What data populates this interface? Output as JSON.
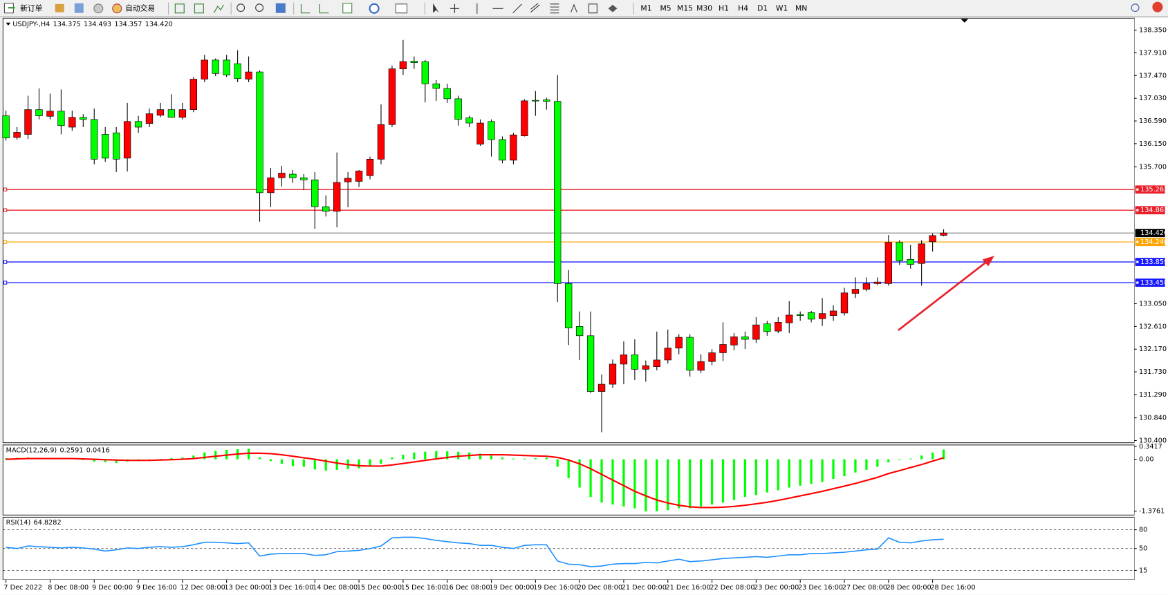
{
  "toolbar": {
    "new_order": "新订单",
    "auto_trading": "自动交易",
    "timeframes": [
      "M1",
      "M5",
      "M15",
      "M30",
      "H1",
      "H4",
      "D1",
      "W1",
      "MN"
    ]
  },
  "chart_data": [
    {
      "type": "candlestick",
      "title": "USDJPY-,H4",
      "ohlc_labels": [
        "134.375",
        "134.493",
        "134.357",
        "134.420"
      ],
      "categories": [
        "7 Dec 2022",
        null,
        null,
        null,
        "8 Dec 08:00",
        null,
        null,
        null,
        "9 Dec 00:00",
        null,
        null,
        null,
        "9 Dec 16:00",
        null,
        null,
        null,
        "12 Dec 08:00",
        null,
        null,
        null,
        "13 Dec 00:00",
        null,
        null,
        null,
        "13 Dec 16:00",
        null,
        null,
        null,
        "14 Dec 08:00",
        null,
        null,
        null,
        "15 Dec 00:00",
        null,
        null,
        null,
        "15 Dec 16:00",
        null,
        null,
        null,
        "16 Dec 08:00",
        null,
        null,
        null,
        "19 Dec 00:00",
        null,
        null,
        null,
        "19 Dec 16:00",
        null,
        null,
        null,
        "20 Dec 08:00",
        null,
        null,
        null,
        "21 Dec 00:00",
        null,
        null,
        null,
        "21 Dec 16:00",
        null,
        null,
        null,
        "22 Dec 08:00",
        null,
        null,
        null,
        "23 Dec 00:00",
        null,
        null,
        null,
        "23 Dec 16:00",
        null,
        null,
        null,
        "27 Dec 08:00",
        null,
        null,
        null,
        "28 Dec 00:00",
        null,
        null,
        null,
        "28 Dec 16:00",
        null
      ],
      "open": [
        136.69,
        136.27,
        136.33,
        136.81,
        136.68,
        136.78,
        136.47,
        136.66,
        136.62,
        136.33,
        136.36,
        135.87,
        136.58,
        136.54,
        136.7,
        136.81,
        136.66,
        136.81,
        137.4,
        137.77,
        137.77,
        137.7,
        137.4,
        137.54,
        135.2,
        135.49,
        135.56,
        135.49,
        135.45,
        134.93,
        134.84,
        135.41,
        135.42,
        135.53,
        135.85,
        136.52,
        137.6,
        137.75,
        137.74,
        137.31,
        137.22,
        137.02,
        136.65,
        136.14,
        136.58,
        136.23,
        135.83,
        136.3,
        136.99,
        137.0,
        136.97,
        133.44,
        132.61,
        132.43,
        131.35,
        131.49,
        131.88,
        132.06,
        131.78,
        131.83,
        131.96,
        132.19,
        132.4,
        131.76,
        131.93,
        132.1,
        132.25,
        132.41,
        132.36,
        132.66,
        132.52,
        132.68,
        132.84,
        132.88,
        132.76,
        132.82,
        132.87,
        133.25,
        133.33,
        133.44,
        133.44,
        134.24,
        133.91,
        133.83,
        134.25,
        134.375
      ],
      "high": [
        136.79,
        136.47,
        137.08,
        137.22,
        137.12,
        137.2,
        136.79,
        136.72,
        136.83,
        136.47,
        136.47,
        136.94,
        136.69,
        136.83,
        136.94,
        137.11,
        136.94,
        137.44,
        137.87,
        137.8,
        137.87,
        137.96,
        137.84,
        137.57,
        135.68,
        135.72,
        135.64,
        135.56,
        135.6,
        135.15,
        135.98,
        135.6,
        135.64,
        135.9,
        136.91,
        137.66,
        138.16,
        137.84,
        137.77,
        137.38,
        137.31,
        137.08,
        136.69,
        136.62,
        136.62,
        136.29,
        136.36,
        137.01,
        137.17,
        137.04,
        137.48,
        133.7,
        132.9,
        132.9,
        131.68,
        131.97,
        132.32,
        132.36,
        131.95,
        132.51,
        132.55,
        132.46,
        132.46,
        132.07,
        132.17,
        132.69,
        132.48,
        132.51,
        132.79,
        132.72,
        132.79,
        133.1,
        132.9,
        132.91,
        133.16,
        133.02,
        133.36,
        133.56,
        133.56,
        133.56,
        134.38,
        134.28,
        134.19,
        134.28,
        134.41,
        134.493
      ],
      "low": [
        136.21,
        136.23,
        136.24,
        136.62,
        136.62,
        136.33,
        136.4,
        136.47,
        135.75,
        135.8,
        135.6,
        135.61,
        136.36,
        136.47,
        136.66,
        136.65,
        136.62,
        136.76,
        137.34,
        137.46,
        137.44,
        137.34,
        137.34,
        134.64,
        134.92,
        135.32,
        135.39,
        135.25,
        134.5,
        134.74,
        134.53,
        134.92,
        135.31,
        135.46,
        135.75,
        136.47,
        137.48,
        137.6,
        136.95,
        136.98,
        136.94,
        136.5,
        136.47,
        136.11,
        135.9,
        135.77,
        135.75,
        136.29,
        136.69,
        136.81,
        133.08,
        132.25,
        131.96,
        131.32,
        130.56,
        131.42,
        131.49,
        131.57,
        131.54,
        131.76,
        131.89,
        132.07,
        131.64,
        131.71,
        131.86,
        131.94,
        132.15,
        132.17,
        132.29,
        132.43,
        132.48,
        132.48,
        132.72,
        132.69,
        132.62,
        132.72,
        132.82,
        133.16,
        133.29,
        133.41,
        133.4,
        133.8,
        133.73,
        133.4,
        134.06,
        134.357
      ],
      "close": [
        136.26,
        136.37,
        136.81,
        136.69,
        136.78,
        136.5,
        136.66,
        136.62,
        135.85,
        135.87,
        135.85,
        136.58,
        136.47,
        136.73,
        136.81,
        136.66,
        136.81,
        137.4,
        137.77,
        137.51,
        137.48,
        137.41,
        137.54,
        135.2,
        135.49,
        135.58,
        135.49,
        135.45,
        134.93,
        134.84,
        135.4,
        135.48,
        135.62,
        135.85,
        136.52,
        137.6,
        137.74,
        137.72,
        137.31,
        137.22,
        137.02,
        136.62,
        136.55,
        136.55,
        136.23,
        135.83,
        136.32,
        136.98,
        136.98,
        136.97,
        133.44,
        132.58,
        132.43,
        131.35,
        131.49,
        131.88,
        132.06,
        131.78,
        131.85,
        131.96,
        132.19,
        132.4,
        131.76,
        131.93,
        132.1,
        132.26,
        132.41,
        132.36,
        132.64,
        132.51,
        132.69,
        132.83,
        132.82,
        132.75,
        132.86,
        132.91,
        133.26,
        133.33,
        133.44,
        133.47,
        134.24,
        133.88,
        133.81,
        134.21,
        134.37,
        134.42
      ],
      "up_color": "#ff0000",
      "down_color": "#00ff00",
      "ylim": [
        130.357,
        138.581
      ],
      "yticks": [
        {
          "value": 138.35,
          "label": "138.350"
        },
        {
          "value": 137.91,
          "label": "137.910"
        },
        {
          "value": 137.47,
          "label": "137.470"
        },
        {
          "value": 137.03,
          "label": "137.030"
        },
        {
          "value": 136.59,
          "label": "136.590"
        },
        {
          "value": 136.15,
          "label": "136.150"
        },
        {
          "value": 135.7,
          "label": "135.700"
        },
        {
          "value": 133.05,
          "label": "133.050"
        },
        {
          "value": 132.61,
          "label": "132.610"
        },
        {
          "value": 132.17,
          "label": "132.170"
        },
        {
          "value": 131.73,
          "label": "131.730"
        },
        {
          "value": 131.29,
          "label": "131.290"
        },
        {
          "value": 130.84,
          "label": "130.840"
        },
        {
          "value": 130.4,
          "label": "130.400"
        }
      ],
      "levels": [
        {
          "value": 135.262,
          "color": "#e8202a"
        },
        {
          "value": 134.861,
          "color": "#e8202a"
        },
        {
          "value": 134.246,
          "color": "#ffa500"
        },
        {
          "value": 133.859,
          "color": "#1a1aff"
        },
        {
          "value": 133.458,
          "color": "#1a1aff"
        }
      ],
      "current": {
        "value": 134.42,
        "label": "134.420"
      }
    },
    {
      "type": "macd",
      "title": "MACD(12,26,9)",
      "color": "#00ff00",
      "values": [
        0.03,
        0.04,
        0.05,
        0.04,
        0.03,
        0.02,
        0,
        -0.02,
        -0.06,
        -0.08,
        -0.1,
        -0.06,
        -0.05,
        -0.02,
        0.01,
        0.03,
        0.05,
        0.1,
        0.18,
        0.22,
        0.25,
        0.27,
        0.28,
        0.05,
        -0.05,
        -0.12,
        -0.18,
        -0.2,
        -0.27,
        -0.3,
        -0.28,
        -0.26,
        -0.24,
        -0.2,
        -0.12,
        0.05,
        0.12,
        0.18,
        0.2,
        0.22,
        0.21,
        0.2,
        0.18,
        0.15,
        0.1,
        0.05,
        0.02,
        0.02,
        0.03,
        0.04,
        -0.2,
        -0.5,
        -0.75,
        -1.0,
        -1.15,
        -1.2,
        -1.25,
        -1.3,
        -1.38,
        -1.38,
        -1.35,
        -1.3,
        -1.3,
        -1.25,
        -1.2,
        -1.15,
        -1.08,
        -1.0,
        -0.95,
        -0.88,
        -0.82,
        -0.75,
        -0.7,
        -0.65,
        -0.6,
        -0.52,
        -0.45,
        -0.35,
        -0.28,
        -0.2,
        -0.08,
        -0.02,
        0.02,
        0.1,
        0.18,
        0.2591
      ],
      "signal": {
        "color": "#ff0000",
        "values": [
          0.0,
          0.01,
          0.02,
          0.02,
          0.02,
          0.02,
          0.02,
          0.01,
          0.0,
          -0.01,
          -0.02,
          -0.03,
          -0.03,
          -0.03,
          -0.02,
          -0.01,
          0.0,
          0.02,
          0.05,
          0.08,
          0.11,
          0.14,
          0.16,
          0.16,
          0.15,
          0.12,
          0.08,
          0.04,
          0.0,
          -0.05,
          -0.1,
          -0.14,
          -0.17,
          -0.18,
          -0.18,
          -0.15,
          -0.11,
          -0.07,
          -0.03,
          0.01,
          0.05,
          0.08,
          0.1,
          0.12,
          0.12,
          0.12,
          0.11,
          0.1,
          0.09,
          0.08,
          0.05,
          -0.02,
          -0.12,
          -0.25,
          -0.4,
          -0.55,
          -0.7,
          -0.85,
          -0.97,
          -1.08,
          -1.16,
          -1.22,
          -1.26,
          -1.28,
          -1.28,
          -1.27,
          -1.25,
          -1.22,
          -1.18,
          -1.14,
          -1.09,
          -1.03,
          -0.97,
          -0.91,
          -0.85,
          -0.78,
          -0.71,
          -0.64,
          -0.56,
          -0.48,
          -0.38,
          -0.3,
          -0.22,
          -0.14,
          -0.05,
          0.0416
        ]
      },
      "ylim": [
        -1.477,
        0.379
      ],
      "yticks": [
        0.3417,
        {
          "value": 0,
          "label": "0.00"
        },
        -1.3761
      ]
    },
    {
      "type": "line",
      "title": "RSI(14)",
      "color": "#1e90ff",
      "values": [
        52,
        50,
        54,
        53,
        52,
        51,
        52,
        51,
        49,
        46,
        48,
        51,
        50,
        52,
        53,
        52,
        53,
        56,
        60,
        60,
        59,
        58,
        59,
        38,
        41,
        42,
        42,
        42,
        39,
        40,
        45,
        46,
        47,
        50,
        54,
        67,
        68,
        68,
        66,
        63,
        61,
        59,
        58,
        55,
        55,
        52,
        50,
        55,
        56,
        56,
        30,
        25,
        24,
        21,
        22,
        25,
        26,
        26,
        28,
        27,
        30,
        33,
        29,
        30,
        32,
        34,
        35,
        36,
        37,
        36,
        38,
        40,
        40,
        42,
        42,
        43,
        44,
        46,
        48,
        49,
        67,
        60,
        59,
        62,
        64,
        64.8282
      ],
      "ylim": [
        0,
        100
      ],
      "yticks": [
        80,
        50,
        15
      ],
      "grid": true
    }
  ]
}
